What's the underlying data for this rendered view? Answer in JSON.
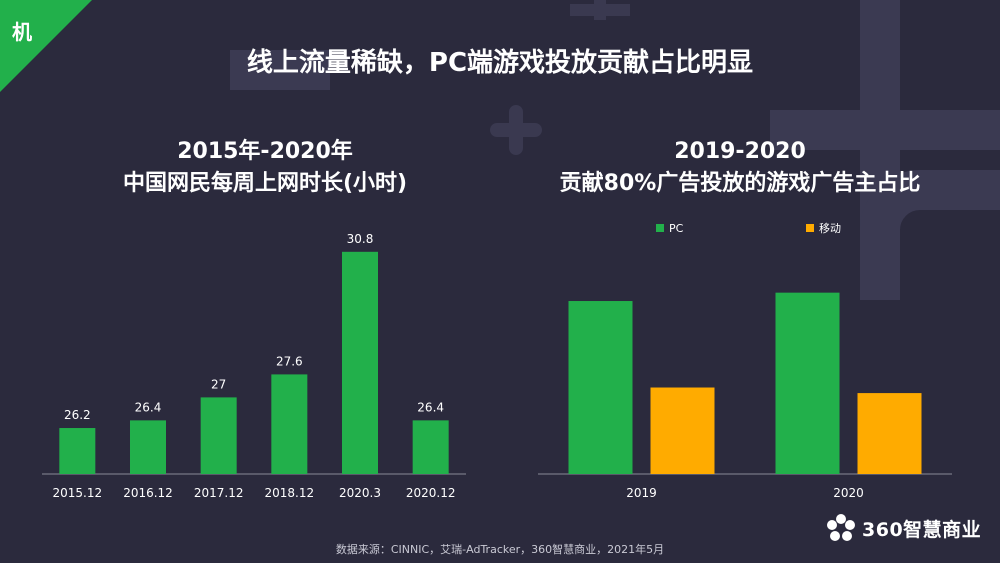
{
  "corner_label": "机",
  "main_title": "线上流量稀缺，PC端游戏投放贡献占比明显",
  "colors": {
    "green": "#22b04b",
    "orange": "#ffab00",
    "bg": "#2b2a3d"
  },
  "chart_left": {
    "title_line1": "2015年-2020年",
    "title_line2": "中国网民每周上网时长(小时)"
  },
  "chart_right": {
    "title_line1": "2019-2020",
    "title_line2": "贡献80%广告投放的游戏广告主占比"
  },
  "chart_data": [
    {
      "type": "bar",
      "title": "2015年-2020年 中国网民每周上网时长(小时)",
      "categories": [
        "2015.12",
        "2016.12",
        "2017.12",
        "2018.12",
        "2020.3",
        "2020.12"
      ],
      "values": [
        26.2,
        26.4,
        27,
        27.6,
        30.8,
        26.4
      ],
      "labels": [
        "26.2",
        "26.4",
        "27",
        "27.6",
        "30.8",
        "26.4"
      ],
      "ylim": [
        25,
        31.5
      ],
      "xlabel": "",
      "ylabel": ""
    },
    {
      "type": "bar",
      "title": "2019-2020 贡献80%广告投放的游戏广告主占比",
      "categories": [
        "2019",
        "2020"
      ],
      "series": [
        {
          "name": "PC",
          "values": [
            62,
            65
          ]
        },
        {
          "name": "移动",
          "values": [
            31,
            29
          ]
        }
      ],
      "ylim": [
        0,
        100
      ],
      "legend": "top-left",
      "xlabel": "",
      "ylabel": ""
    }
  ],
  "footer_source": "数据来源：CINNIC，艾瑞-AdTracker，360智慧商业，2021年5月",
  "brand_name": "360智慧商业"
}
